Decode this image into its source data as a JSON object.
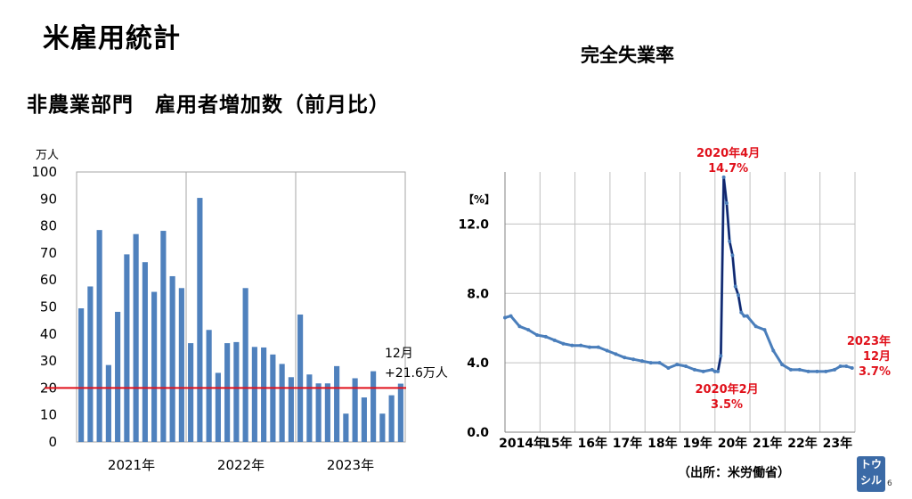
{
  "page": {
    "title": "米雇用統計",
    "left_title": "非農業部門　雇用者増加数（前月比）",
    "right_title": "完全失業率",
    "source": "（出所：米労働省）",
    "page_number": "6",
    "logo_line1": "トウ",
    "logo_line2": "シル"
  },
  "chart_data": [
    {
      "type": "bar",
      "unit_label": "万人",
      "ylim": [
        0,
        100
      ],
      "yticks": [
        0,
        10,
        20,
        30,
        40,
        50,
        60,
        70,
        80,
        90,
        100
      ],
      "year_labels": [
        "2021年",
        "2022年",
        "2023年"
      ],
      "months": [
        "2021-01",
        "2021-02",
        "2021-03",
        "2021-04",
        "2021-05",
        "2021-06",
        "2021-07",
        "2021-08",
        "2021-09",
        "2021-10",
        "2021-11",
        "2021-12",
        "2022-01",
        "2022-02",
        "2022-03",
        "2022-04",
        "2022-05",
        "2022-06",
        "2022-07",
        "2022-08",
        "2022-09",
        "2022-10",
        "2022-11",
        "2022-12",
        "2023-01",
        "2023-02",
        "2023-03",
        "2023-04",
        "2023-05",
        "2023-06",
        "2023-07",
        "2023-08",
        "2023-09",
        "2023-10",
        "2023-11",
        "2023-12"
      ],
      "values": [
        49.5,
        57.6,
        78.5,
        28.5,
        48.2,
        69.5,
        77.0,
        66.6,
        55.6,
        78.2,
        61.4,
        57.0,
        36.6,
        90.4,
        41.5,
        25.6,
        36.6,
        37.0,
        57.0,
        35.2,
        35.0,
        32.4,
        28.9,
        24.0,
        47.2,
        25.0,
        21.7,
        21.7,
        28.1,
        10.5,
        23.6,
        16.5,
        26.2,
        10.5,
        17.3,
        21.6
      ],
      "bar_color": "#4f81bd",
      "reference_line": 20,
      "reference_color": "#e0111b",
      "annotation": {
        "line1": "12月",
        "line2": "+21.6万人"
      },
      "grid": false
    },
    {
      "type": "line",
      "unit_label": "【%】",
      "ylim": [
        0,
        15
      ],
      "yticks": [
        {
          "value": 0.0,
          "label": "0.0"
        },
        {
          "value": 4.0,
          "label": "4.0"
        },
        {
          "value": 8.0,
          "label": "8.0"
        },
        {
          "value": 12.0,
          "label": "12.0"
        }
      ],
      "xlim": [
        "2014-01",
        "2023-12"
      ],
      "x_labels": [
        "2014年",
        "15年",
        "16年",
        "17年",
        "18年",
        "19年",
        "20年",
        "21年",
        "22年",
        "23年"
      ],
      "grid": true,
      "line_color": "#4a7ebb",
      "spike_color": "#12246b",
      "series": [
        {
          "points": [
            [
              "2014-01",
              6.6
            ],
            [
              "2014-03",
              6.7
            ],
            [
              "2014-06",
              6.1
            ],
            [
              "2014-09",
              5.9
            ],
            [
              "2014-12",
              5.6
            ],
            [
              "2015-03",
              5.5
            ],
            [
              "2015-06",
              5.3
            ],
            [
              "2015-09",
              5.1
            ],
            [
              "2015-12",
              5.0
            ],
            [
              "2016-03",
              5.0
            ],
            [
              "2016-06",
              4.9
            ],
            [
              "2016-09",
              4.9
            ],
            [
              "2016-12",
              4.7
            ],
            [
              "2017-03",
              4.5
            ],
            [
              "2017-06",
              4.3
            ],
            [
              "2017-09",
              4.2
            ],
            [
              "2017-12",
              4.1
            ],
            [
              "2018-03",
              4.0
            ],
            [
              "2018-06",
              4.0
            ],
            [
              "2018-09",
              3.7
            ],
            [
              "2018-12",
              3.9
            ],
            [
              "2019-03",
              3.8
            ],
            [
              "2019-06",
              3.6
            ],
            [
              "2019-09",
              3.5
            ],
            [
              "2019-12",
              3.6
            ],
            [
              "2020-01",
              3.5
            ],
            [
              "2020-02",
              3.5
            ],
            [
              "2020-03",
              4.4
            ],
            [
              "2020-04",
              14.7
            ],
            [
              "2020-05",
              13.2
            ],
            [
              "2020-06",
              11.0
            ],
            [
              "2020-07",
              10.2
            ],
            [
              "2020-08",
              8.4
            ],
            [
              "2020-09",
              7.9
            ],
            [
              "2020-10",
              6.9
            ],
            [
              "2020-11",
              6.7
            ],
            [
              "2020-12",
              6.7
            ],
            [
              "2021-03",
              6.1
            ],
            [
              "2021-06",
              5.9
            ],
            [
              "2021-09",
              4.7
            ],
            [
              "2021-12",
              3.9
            ],
            [
              "2022-03",
              3.6
            ],
            [
              "2022-06",
              3.6
            ],
            [
              "2022-09",
              3.5
            ],
            [
              "2022-12",
              3.5
            ],
            [
              "2023-03",
              3.5
            ],
            [
              "2023-06",
              3.6
            ],
            [
              "2023-08",
              3.8
            ],
            [
              "2023-10",
              3.8
            ],
            [
              "2023-12",
              3.7
            ]
          ]
        }
      ],
      "annotations": [
        {
          "x": "2020-04",
          "y": 14.7,
          "line1": "2020年4月",
          "line2": "14.7%",
          "position": "above"
        },
        {
          "x": "2020-02",
          "y": 3.5,
          "line1": "2020年2月",
          "line2": "3.5%",
          "position": "below"
        },
        {
          "x": "2023-12",
          "y": 3.7,
          "line1": "2023年",
          "line2": "12月",
          "line3": "3.7%",
          "position": "right"
        }
      ],
      "annotation_color": "#e0111b"
    }
  ]
}
